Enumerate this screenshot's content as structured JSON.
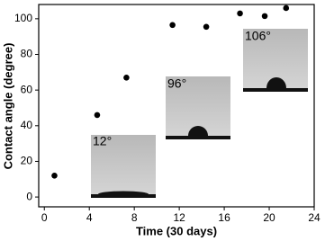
{
  "chart_data": {
    "type": "scatter",
    "x_label": "Time (30 days)",
    "y_label": "Contact angle (degree)",
    "x": [
      0.9,
      4.7,
      7.3,
      11.4,
      14.4,
      17.4,
      19.6,
      21.5
    ],
    "values": [
      12,
      46,
      67,
      96.5,
      95.5,
      103,
      101.5,
      106
    ],
    "color": "#000000",
    "xlim": [
      -0.5,
      24
    ],
    "xticks": [
      0,
      4,
      8,
      12,
      16,
      20,
      24
    ],
    "ylim": [
      -5.5,
      108
    ],
    "yticks": [
      0,
      20,
      40,
      60,
      80,
      100
    ],
    "annotations": [
      "12°",
      "96°",
      "106°"
    ]
  }
}
